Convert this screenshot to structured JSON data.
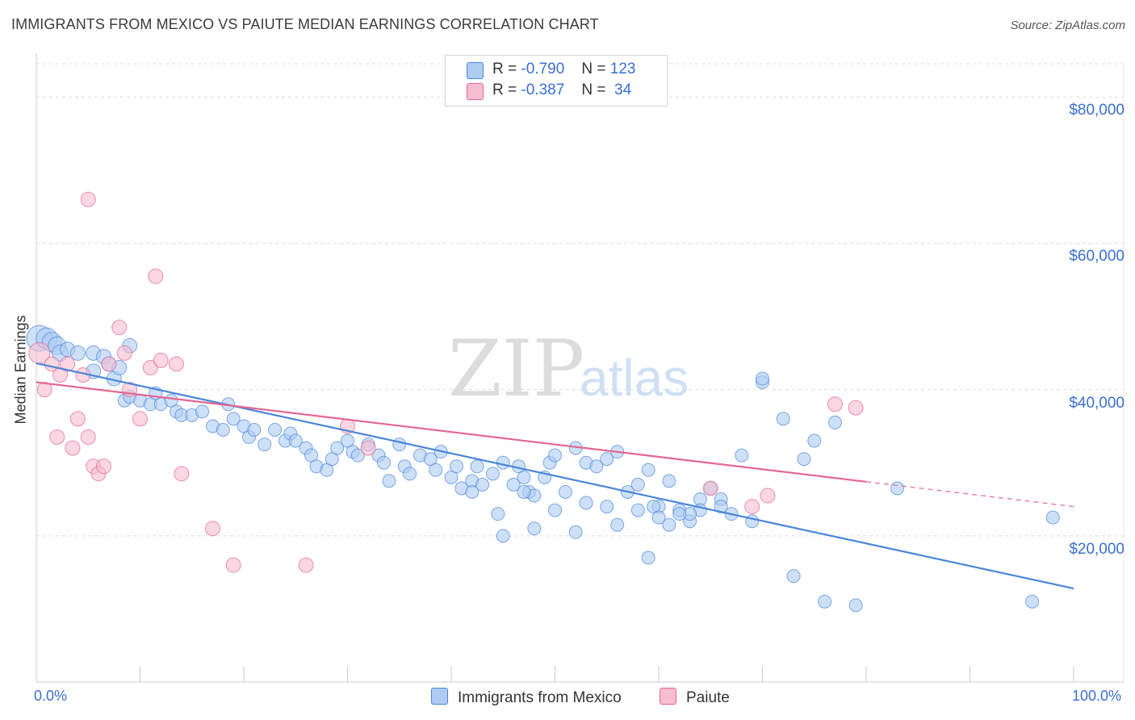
{
  "title": "IMMIGRANTS FROM MEXICO VS PAIUTE MEDIAN EARNINGS CORRELATION CHART",
  "source": "Source: ZipAtlas.com",
  "watermark": {
    "zip": "ZIP",
    "atlas": "atlas"
  },
  "legend": {
    "rows": [
      {
        "r_label": "R =",
        "r_value": "-0.790",
        "n_label": "N =",
        "n_value": "123",
        "color": "#aecbf2"
      },
      {
        "r_label": "R =",
        "r_value": "-0.387",
        "n_label": "N =",
        "n_value": " 34",
        "color": "#f7bdd0"
      }
    ]
  },
  "chart_data": {
    "type": "scatter",
    "xlabel": "",
    "ylabel": "Median Earnings",
    "xlim": [
      0,
      100
    ],
    "ylim": [
      0,
      85000
    ],
    "x_tick_labels": {
      "left": "0.0%",
      "right": "100.0%"
    },
    "y_ticks": [
      {
        "value": 20000,
        "label": "$20,000"
      },
      {
        "value": 40000,
        "label": "$40,000"
      },
      {
        "value": 60000,
        "label": "$60,000"
      },
      {
        "value": 80000,
        "label": "$80,000"
      }
    ],
    "series": [
      {
        "name": "Immigrants from Mexico",
        "color": "#4a86d8",
        "fill": "#aecbf2",
        "trend": {
          "x0": 0,
          "y0": 43600,
          "x1": 100,
          "y1": 12800,
          "dashed_from": null
        },
        "points": [
          [
            0.3,
            47000,
            16
          ],
          [
            1,
            47000,
            13
          ],
          [
            1.5,
            46500,
            12
          ],
          [
            2,
            46000,
            11
          ],
          [
            2.3,
            45000,
            10
          ],
          [
            3,
            45500,
            9
          ],
          [
            4,
            45000,
            9
          ],
          [
            5.5,
            45000,
            9
          ],
          [
            6.5,
            44500,
            9
          ],
          [
            7,
            43500,
            9
          ],
          [
            5.5,
            42500,
            9
          ],
          [
            7.5,
            41500,
            9
          ],
          [
            8,
            43000,
            9
          ],
          [
            9,
            46000,
            9
          ],
          [
            8.5,
            38500,
            8
          ],
          [
            9,
            39000,
            8
          ],
          [
            10,
            38500,
            8
          ],
          [
            11,
            38000,
            8
          ],
          [
            11.5,
            39500,
            8
          ],
          [
            12,
            38000,
            8
          ],
          [
            13,
            38500,
            8
          ],
          [
            13.5,
            37000,
            8
          ],
          [
            14,
            36500,
            8
          ],
          [
            15,
            36500,
            8
          ],
          [
            16,
            37000,
            8
          ],
          [
            17,
            35000,
            8
          ],
          [
            18,
            34500,
            8
          ],
          [
            18.5,
            38000,
            8
          ],
          [
            19,
            36000,
            8
          ],
          [
            20,
            35000,
            8
          ],
          [
            20.5,
            33500,
            8
          ],
          [
            21,
            34500,
            8
          ],
          [
            22,
            32500,
            8
          ],
          [
            23,
            34500,
            8
          ],
          [
            24,
            33000,
            8
          ],
          [
            24.5,
            34000,
            8
          ],
          [
            25,
            33000,
            8
          ],
          [
            26,
            32000,
            8
          ],
          [
            26.5,
            31000,
            8
          ],
          [
            27,
            29500,
            8
          ],
          [
            28,
            29000,
            8
          ],
          [
            28.5,
            30500,
            8
          ],
          [
            29,
            32000,
            8
          ],
          [
            30,
            33000,
            8
          ],
          [
            30.5,
            31500,
            8
          ],
          [
            31,
            31000,
            8
          ],
          [
            32,
            32500,
            8
          ],
          [
            33,
            31000,
            8
          ],
          [
            33.5,
            30000,
            8
          ],
          [
            34,
            27500,
            8
          ],
          [
            35,
            32500,
            8
          ],
          [
            35.5,
            29500,
            8
          ],
          [
            36,
            28500,
            8
          ],
          [
            37,
            31000,
            8
          ],
          [
            38,
            30500,
            8
          ],
          [
            38.5,
            29000,
            8
          ],
          [
            39,
            31500,
            8
          ],
          [
            40,
            28000,
            8
          ],
          [
            40.5,
            29500,
            8
          ],
          [
            41,
            26500,
            8
          ],
          [
            42,
            27500,
            8
          ],
          [
            42.5,
            29500,
            8
          ],
          [
            43,
            27000,
            8
          ],
          [
            44,
            28500,
            8
          ],
          [
            44.5,
            23000,
            8
          ],
          [
            45,
            30000,
            8
          ],
          [
            46,
            27000,
            8
          ],
          [
            46.5,
            29500,
            8
          ],
          [
            47,
            28000,
            8
          ],
          [
            47.5,
            26000,
            8
          ],
          [
            48,
            25500,
            8
          ],
          [
            49,
            28000,
            8
          ],
          [
            49.5,
            30000,
            8
          ],
          [
            50,
            31000,
            8
          ],
          [
            51,
            26000,
            8
          ],
          [
            52,
            32000,
            8
          ],
          [
            53,
            30000,
            8
          ],
          [
            54,
            29500,
            8
          ],
          [
            55,
            30500,
            8
          ],
          [
            56,
            31500,
            8
          ],
          [
            57,
            26000,
            8
          ],
          [
            58,
            27000,
            8
          ],
          [
            59,
            29000,
            8
          ],
          [
            60,
            24000,
            8
          ],
          [
            61,
            27500,
            8
          ],
          [
            62,
            23500,
            8
          ],
          [
            63,
            22000,
            8
          ],
          [
            64,
            25000,
            8
          ],
          [
            65,
            26500,
            8
          ],
          [
            66,
            25000,
            8
          ],
          [
            67,
            23000,
            8
          ],
          [
            68,
            31000,
            8
          ],
          [
            69,
            22000,
            8
          ],
          [
            70,
            41000,
            8
          ],
          [
            72,
            36000,
            8
          ],
          [
            73,
            14500,
            8
          ],
          [
            74,
            30500,
            8
          ],
          [
            75,
            33000,
            8
          ],
          [
            77,
            35500,
            8
          ],
          [
            76,
            11000,
            8
          ],
          [
            83,
            26500,
            8
          ],
          [
            79,
            10500,
            8
          ],
          [
            98,
            22500,
            8
          ],
          [
            96,
            11000,
            8
          ],
          [
            59,
            17000,
            8
          ],
          [
            64,
            23500,
            8
          ],
          [
            61,
            21500,
            8
          ],
          [
            70,
            41500,
            8
          ],
          [
            59.5,
            24000,
            8
          ],
          [
            50,
            23500,
            8
          ],
          [
            42,
            26000,
            8
          ],
          [
            47,
            26000,
            8
          ],
          [
            58,
            23500,
            8
          ],
          [
            55,
            24000,
            8
          ],
          [
            52,
            20500,
            8
          ],
          [
            48,
            21000,
            8
          ],
          [
            56,
            21500,
            8
          ],
          [
            63,
            23000,
            8
          ],
          [
            45,
            20000,
            8
          ],
          [
            53,
            24500,
            8
          ],
          [
            62,
            23000,
            8
          ],
          [
            60,
            22500,
            8
          ],
          [
            66,
            24000,
            8
          ]
        ]
      },
      {
        "name": "Paiute",
        "color": "#e2678f",
        "fill": "#f7bdd0",
        "trend": {
          "x0": 0,
          "y0": 41000,
          "x1": 100,
          "y1": 24000,
          "dashed_from": 80
        },
        "points": [
          [
            0.3,
            45000,
            13
          ],
          [
            0.8,
            40000,
            9
          ],
          [
            1.5,
            43500,
            9
          ],
          [
            2,
            33500,
            9
          ],
          [
            2.3,
            42000,
            9
          ],
          [
            3,
            43500,
            9
          ],
          [
            3.5,
            32000,
            9
          ],
          [
            4,
            36000,
            9
          ],
          [
            4.5,
            42000,
            9
          ],
          [
            5,
            66000,
            9
          ],
          [
            5,
            33500,
            9
          ],
          [
            5.5,
            29500,
            9
          ],
          [
            6,
            28500,
            9
          ],
          [
            6.5,
            29500,
            9
          ],
          [
            7,
            43500,
            9
          ],
          [
            8,
            48500,
            9
          ],
          [
            8.5,
            45000,
            9
          ],
          [
            9,
            40000,
            9
          ],
          [
            10,
            36000,
            9
          ],
          [
            11,
            43000,
            9
          ],
          [
            11.5,
            55500,
            9
          ],
          [
            12,
            44000,
            9
          ],
          [
            13.5,
            43500,
            9
          ],
          [
            14,
            28500,
            9
          ],
          [
            17,
            21000,
            9
          ],
          [
            19,
            16000,
            9
          ],
          [
            26,
            16000,
            9
          ],
          [
            30,
            35000,
            9
          ],
          [
            32,
            32000,
            9
          ],
          [
            65,
            26500,
            9
          ],
          [
            69,
            24000,
            9
          ],
          [
            70.5,
            25500,
            9
          ],
          [
            77,
            38000,
            9
          ],
          [
            79,
            37500,
            9
          ]
        ]
      }
    ]
  }
}
